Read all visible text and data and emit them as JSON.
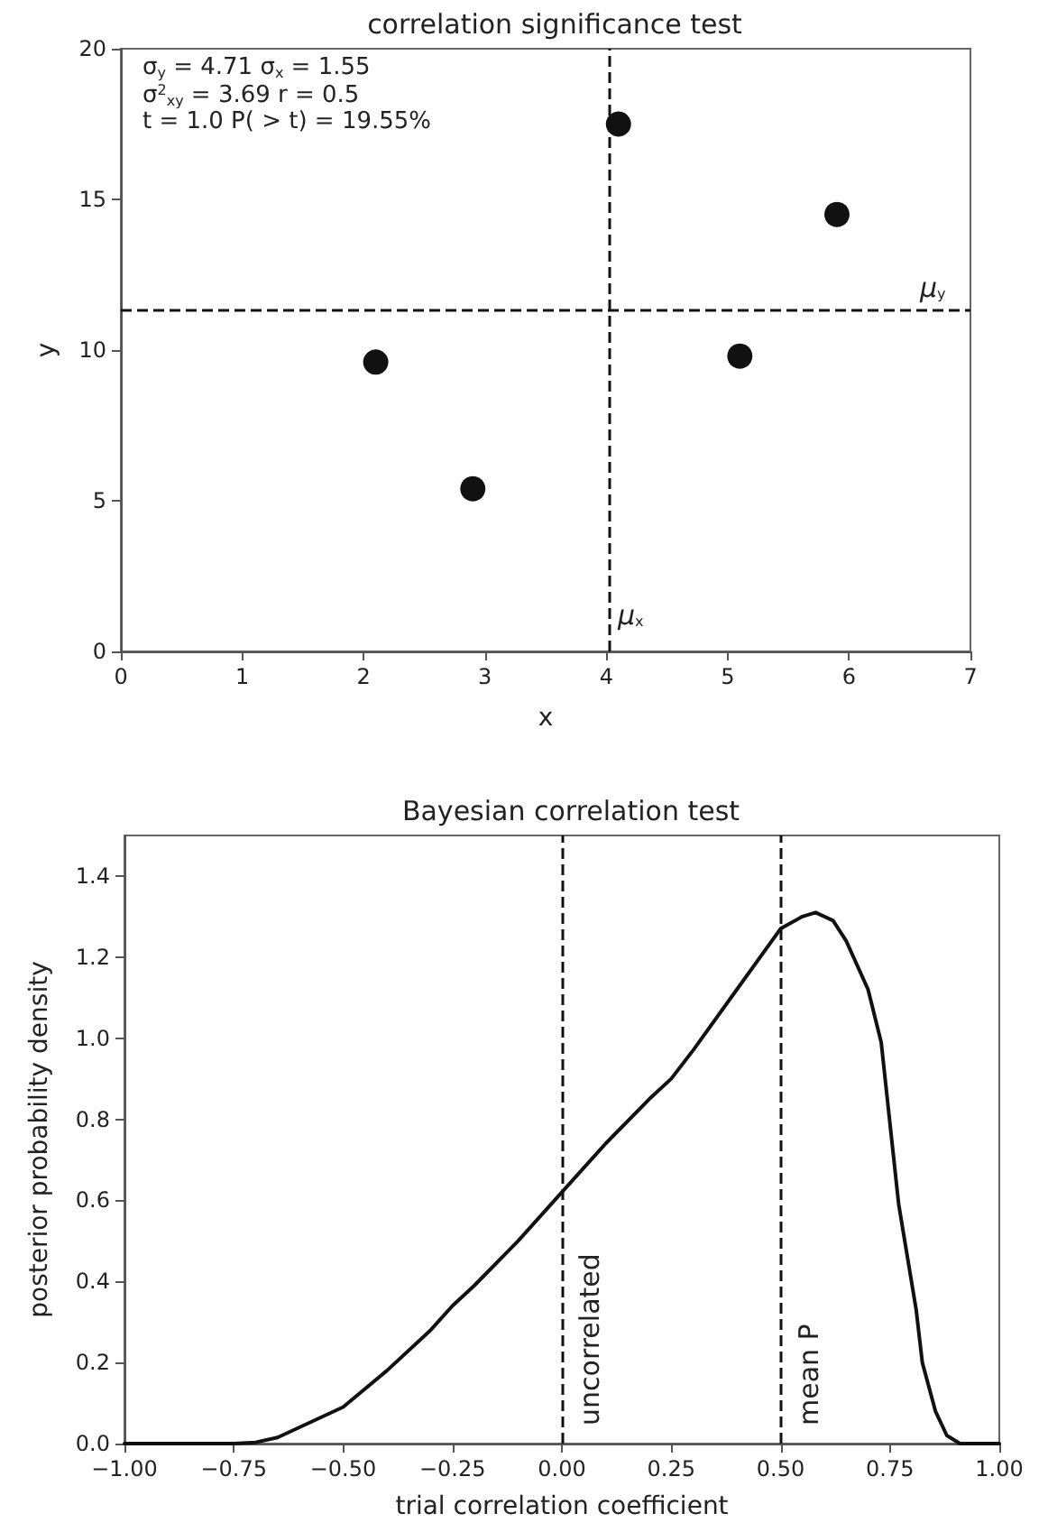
{
  "chart_data": [
    {
      "type": "scatter",
      "title": "correlation significance test",
      "xlabel": "x",
      "ylabel": "y",
      "marker": "circle",
      "x": [
        2.1,
        2.9,
        4.1,
        5.1,
        5.9
      ],
      "series": [
        {
          "color": "#111111",
          "values": [
            9.6,
            5.4,
            17.5,
            9.8,
            14.5
          ]
        }
      ],
      "xlim": [
        0,
        7
      ],
      "xticks": [
        0,
        1,
        2,
        3,
        4,
        5,
        6,
        7
      ],
      "ylim": [
        0,
        20
      ],
      "yticks": [
        0,
        5,
        10,
        15,
        20
      ],
      "ref_lines": [
        {
          "axis": "x",
          "value": 4.02,
          "label": "μ$_{x}$",
          "color": "#111111",
          "line_style": "dashed"
        },
        {
          "axis": "y",
          "value": 11.36,
          "label": "μ$_{y}$",
          "color": "#111111",
          "line_style": "dashed"
        }
      ],
      "annotations": [
        "σ$_{y}$ = 4.71 σ$_{x}$ = 1.55",
        "σ$^{2}$$_{xy}$ = 3.69 r = 0.5",
        "t = 1.0 P( > t) = 19.55%"
      ]
    },
    {
      "type": "line",
      "title": "Bayesian correlation test",
      "xlabel": "trial correlation coefficient",
      "ylabel": "posterior probability density",
      "marker": "none",
      "line_style": "solid",
      "x": [
        -1,
        -0.75,
        -0.7,
        -0.65,
        -0.6,
        -0.5,
        -0.4,
        -0.3,
        -0.25,
        -0.2,
        -0.1,
        0,
        0.1,
        0.2,
        0.25,
        0.3,
        0.4,
        0.5,
        0.55,
        0.58,
        0.62,
        0.65,
        0.7,
        0.73,
        0.77,
        0.81,
        0.824,
        0.854,
        0.88,
        0.91,
        1
      ],
      "series": [
        {
          "color": "#111111",
          "values": [
            0,
            0,
            0.003,
            0.015,
            0.04,
            0.09,
            0.18,
            0.28,
            0.34,
            0.39,
            0.5,
            0.62,
            0.74,
            0.85,
            0.9,
            0.97,
            1.12,
            1.27,
            1.3,
            1.31,
            1.29,
            1.24,
            1.12,
            0.99,
            0.59,
            0.33,
            0.2,
            0.08,
            0.02,
            0,
            0
          ]
        }
      ],
      "xlim": [
        -1,
        1
      ],
      "xticks": [
        {
          "value": -1,
          "label": "−1.00"
        },
        {
          "value": -0.75,
          "label": "−0.75"
        },
        {
          "value": -0.5,
          "label": "−0.50"
        },
        {
          "value": -0.25,
          "label": "−0.25"
        },
        {
          "value": 0,
          "label": "0.00"
        },
        {
          "value": 0.25,
          "label": "0.25"
        },
        {
          "value": 0.5,
          "label": "0.50"
        },
        {
          "value": 0.75,
          "label": "0.75"
        },
        {
          "value": 1,
          "label": "1.00"
        }
      ],
      "ylim": [
        0,
        1.5
      ],
      "yticks": [
        {
          "value": 0,
          "label": "0.0"
        },
        {
          "value": 0.2,
          "label": "0.2"
        },
        {
          "value": 0.4,
          "label": "0.4"
        },
        {
          "value": 0.6,
          "label": "0.6"
        },
        {
          "value": 0.8,
          "label": "0.8"
        },
        {
          "value": 1,
          "label": "1.0"
        },
        {
          "value": 1.2,
          "label": "1.2"
        },
        {
          "value": 1.4,
          "label": "1.4"
        }
      ],
      "ref_lines": [
        {
          "axis": "x",
          "value": 0,
          "label": "uncorrelated",
          "color": "#111111",
          "line_style": "dashed"
        },
        {
          "axis": "x",
          "value": 0.5,
          "label": "mean P",
          "color": "#111111",
          "line_style": "dashed"
        }
      ]
    }
  ]
}
